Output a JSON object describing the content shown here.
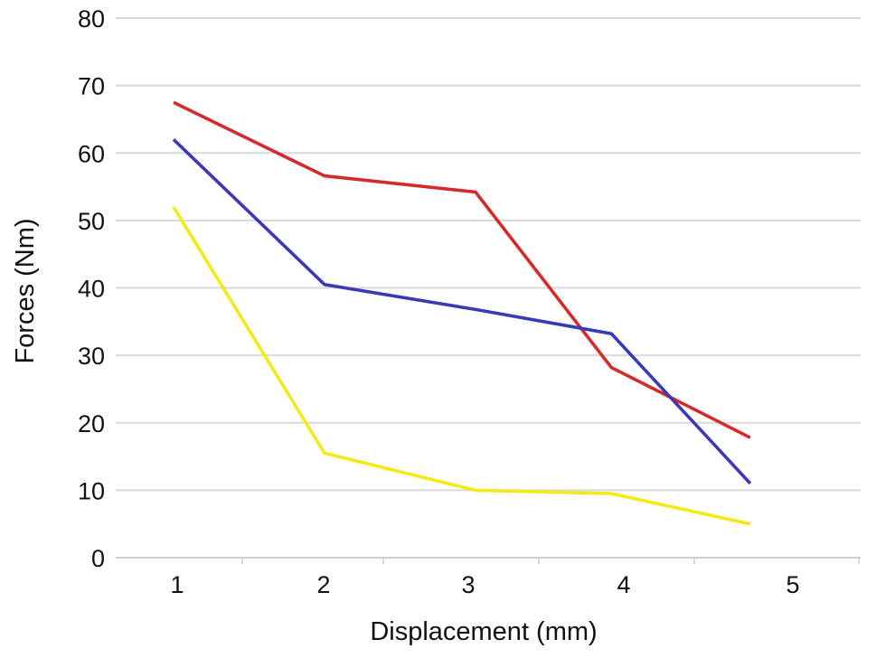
{
  "chart_data": {
    "type": "line",
    "title": "",
    "xlabel": "Displacement (mm)",
    "ylabel": "Forces (Nm)",
    "ylim": [
      0,
      80
    ],
    "yticks": [
      0,
      10,
      20,
      30,
      40,
      50,
      60,
      70,
      80
    ],
    "x_tick_labels": [
      "1",
      "2",
      "3",
      "4",
      "5"
    ],
    "grid": "horizontal",
    "legend": "none",
    "series": [
      {
        "color": "#d42a2a",
        "points": [
          [
            1,
            67.5
          ],
          [
            2,
            56.6
          ],
          [
            3,
            54.2
          ],
          [
            3.9,
            28.2
          ],
          [
            4.82,
            17.8
          ]
        ]
      },
      {
        "color": "#3a3ab8",
        "points": [
          [
            1,
            62
          ],
          [
            2,
            40.5
          ],
          [
            3,
            36.8
          ],
          [
            3.9,
            33.2
          ],
          [
            4.82,
            11
          ]
        ]
      },
      {
        "color": "#f2ea17",
        "points": [
          [
            1,
            52
          ],
          [
            2,
            15.5
          ],
          [
            3,
            10
          ],
          [
            3.9,
            9.5
          ],
          [
            4.82,
            5
          ]
        ]
      }
    ]
  }
}
